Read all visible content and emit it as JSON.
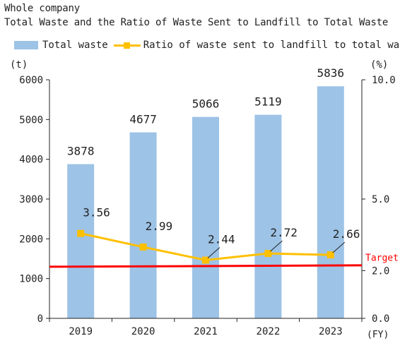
{
  "chart_data": {
    "type": "bar",
    "subtitle": "Whole company",
    "title": "Total Waste and the Ratio of Waste Sent to Landfill to Total Waste",
    "categories": [
      "2019",
      "2020",
      "2021",
      "2022",
      "2023"
    ],
    "x_unit": "(FY)",
    "y_left": {
      "unit": "(t)",
      "ylim": [
        0,
        6000
      ],
      "ticks": [
        "0",
        "1000",
        "2000",
        "3000",
        "4000",
        "5000",
        "6000"
      ]
    },
    "y_right": {
      "unit": "(%)",
      "ylim": [
        0,
        10
      ],
      "ticks": [
        "0.0",
        "2.0",
        "5.0",
        "10.0"
      ]
    },
    "series": [
      {
        "name": "Total waste",
        "type": "bar",
        "axis": "left",
        "values": [
          3878,
          4677,
          5066,
          5119,
          5836
        ],
        "labels": [
          "3878",
          "4677",
          "5066",
          "5119",
          "5836"
        ]
      },
      {
        "name": "Ratio of waste sent to landfill to total waste",
        "type": "line",
        "axis": "right",
        "values": [
          3.56,
          2.99,
          2.44,
          2.72,
          2.66
        ],
        "labels": [
          "3.56",
          "2.99",
          "2.44",
          "2.72",
          "2.66"
        ]
      }
    ],
    "target": {
      "label": "Target",
      "value": 2.0,
      "axis": "right"
    },
    "colors": {
      "bar": "#9dc3e6",
      "line": "#ffc000",
      "target": "#ff0000",
      "axis": "#222222"
    },
    "legend_position": "top",
    "grid": false
  }
}
